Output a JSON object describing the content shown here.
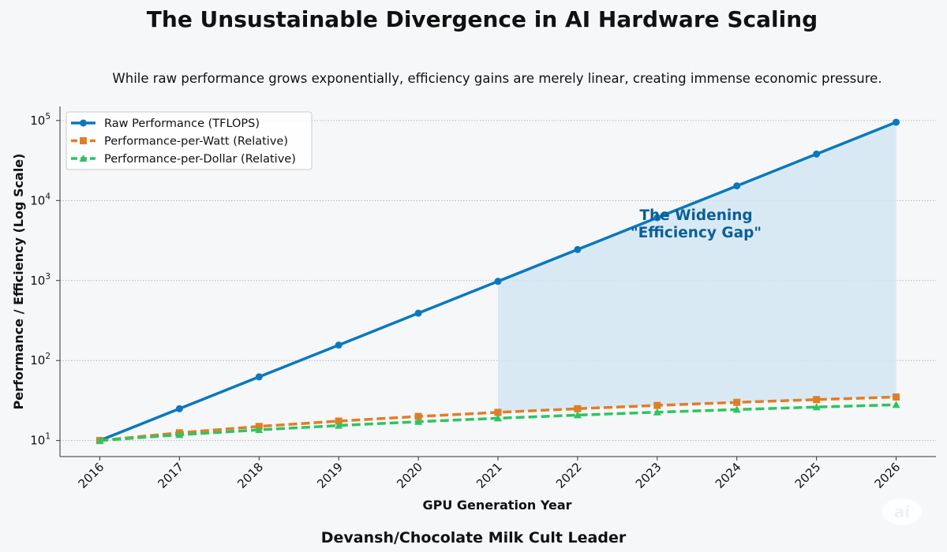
{
  "chart_data": {
    "type": "line",
    "title": "The Unsustainable Divergence in AI Hardware Scaling",
    "subtitle": "While raw performance grows exponentially, efficiency gains are merely linear, creating immense economic pressure.",
    "xlabel": "GPU Generation Year",
    "ylabel": "Performance / Efficiency (Log Scale)",
    "y_scale": "log",
    "ylim": [
      6.3,
      150000
    ],
    "y_ticks": [
      10,
      100,
      1000,
      10000,
      100000
    ],
    "x": [
      2016,
      2017,
      2018,
      2019,
      2020,
      2021,
      2022,
      2023,
      2024,
      2025,
      2026
    ],
    "series": [
      {
        "name": "Raw Performance (TFLOPS)",
        "color": "#0a78bd",
        "style": "solid",
        "marker": "circle",
        "values": [
          10,
          25,
          62.5,
          156,
          391,
          977,
          2441,
          6104,
          15259,
          38147,
          95367
        ]
      },
      {
        "name": "Performance-per-Watt (Relative)",
        "color": "#e07e27",
        "style": "dashed",
        "marker": "square",
        "values": [
          10,
          12.5,
          15,
          17.5,
          20,
          22.5,
          25,
          27.5,
          30,
          32.5,
          35
        ]
      },
      {
        "name": "Performance-per-Dollar (Relative)",
        "color": "#2ec463",
        "style": "dashed",
        "marker": "triangle",
        "values": [
          10,
          11.8,
          13.6,
          15.4,
          17.2,
          19,
          20.8,
          22.6,
          24.4,
          26.2,
          28
        ]
      }
    ],
    "shaded_region": {
      "x_from": 2021,
      "x_to": 2026,
      "between": [
        "Raw Performance (TFLOPS)",
        "Performance-per-Watt (Relative)"
      ],
      "color": "#d4e6f2"
    },
    "annotation": {
      "lines": [
        "The Widening",
        "\"Efficiency Gap\""
      ],
      "color": "#0a5f98"
    },
    "legend_position": "top-left",
    "grid": "horizontal-dotted"
  },
  "footer": "Devansh/Chocolate Milk Cult Leader",
  "watermark": "ai"
}
